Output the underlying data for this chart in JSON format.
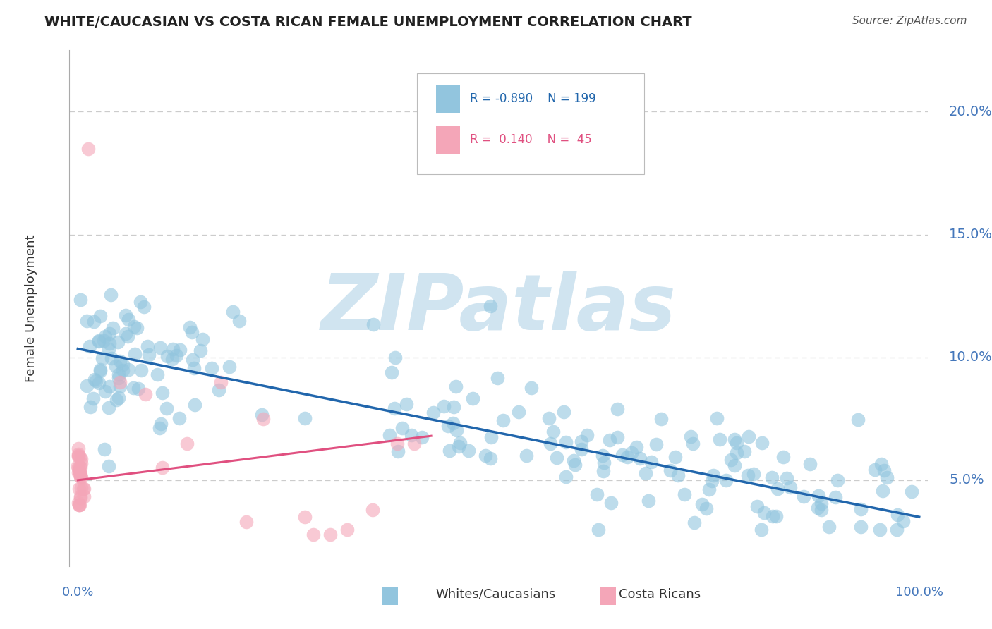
{
  "title": "WHITE/CAUCASIAN VS COSTA RICAN FEMALE UNEMPLOYMENT CORRELATION CHART",
  "source": "Source: ZipAtlas.com",
  "ylabel": "Female Unemployment",
  "y_tick_labels": [
    "5.0%",
    "10.0%",
    "15.0%",
    "20.0%"
  ],
  "y_tick_values": [
    0.05,
    0.1,
    0.15,
    0.2
  ],
  "blue_color": "#92c5de",
  "pink_color": "#f4a6b8",
  "blue_line_color": "#2166ac",
  "pink_line_color": "#e05080",
  "watermark_text": "ZIPatlas",
  "watermark_color": "#d0e4f0",
  "axis_label_color": "#4477bb",
  "grid_color": "#cccccc",
  "blue_r": "-0.890",
  "blue_n": "199",
  "pink_r": "0.140",
  "pink_n": "45",
  "blue_line": [
    0.0,
    0.1035,
    1.0,
    0.035
  ],
  "pink_line": [
    0.0,
    0.05,
    0.42,
    0.068
  ],
  "xlim": [
    -0.01,
    1.01
  ],
  "ylim": [
    0.015,
    0.225
  ]
}
